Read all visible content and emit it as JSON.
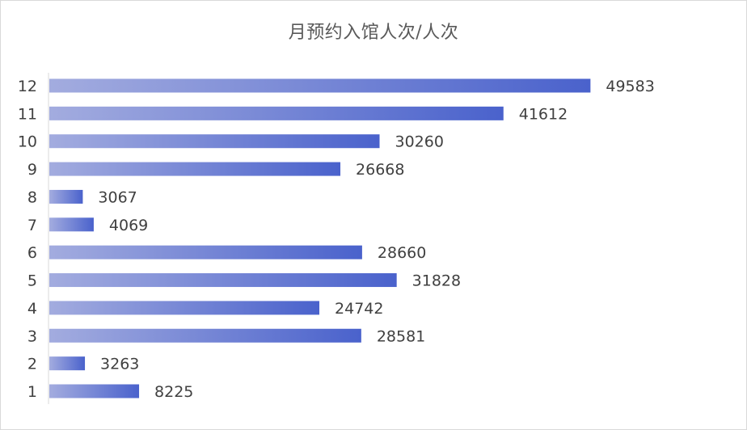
{
  "chart_data": {
    "type": "bar",
    "orientation": "horizontal",
    "title": "月预约入馆人次/人次",
    "categories": [
      "1",
      "2",
      "3",
      "4",
      "5",
      "6",
      "7",
      "8",
      "9",
      "10",
      "11",
      "12"
    ],
    "values": [
      8225,
      3263,
      28581,
      24742,
      31828,
      28660,
      4069,
      3067,
      26668,
      30260,
      41612,
      49583
    ],
    "xlim": [
      0,
      60000
    ],
    "grid": false,
    "legend": "none",
    "bar_gradient": [
      "#a3acdf",
      "#4a62cc"
    ]
  }
}
